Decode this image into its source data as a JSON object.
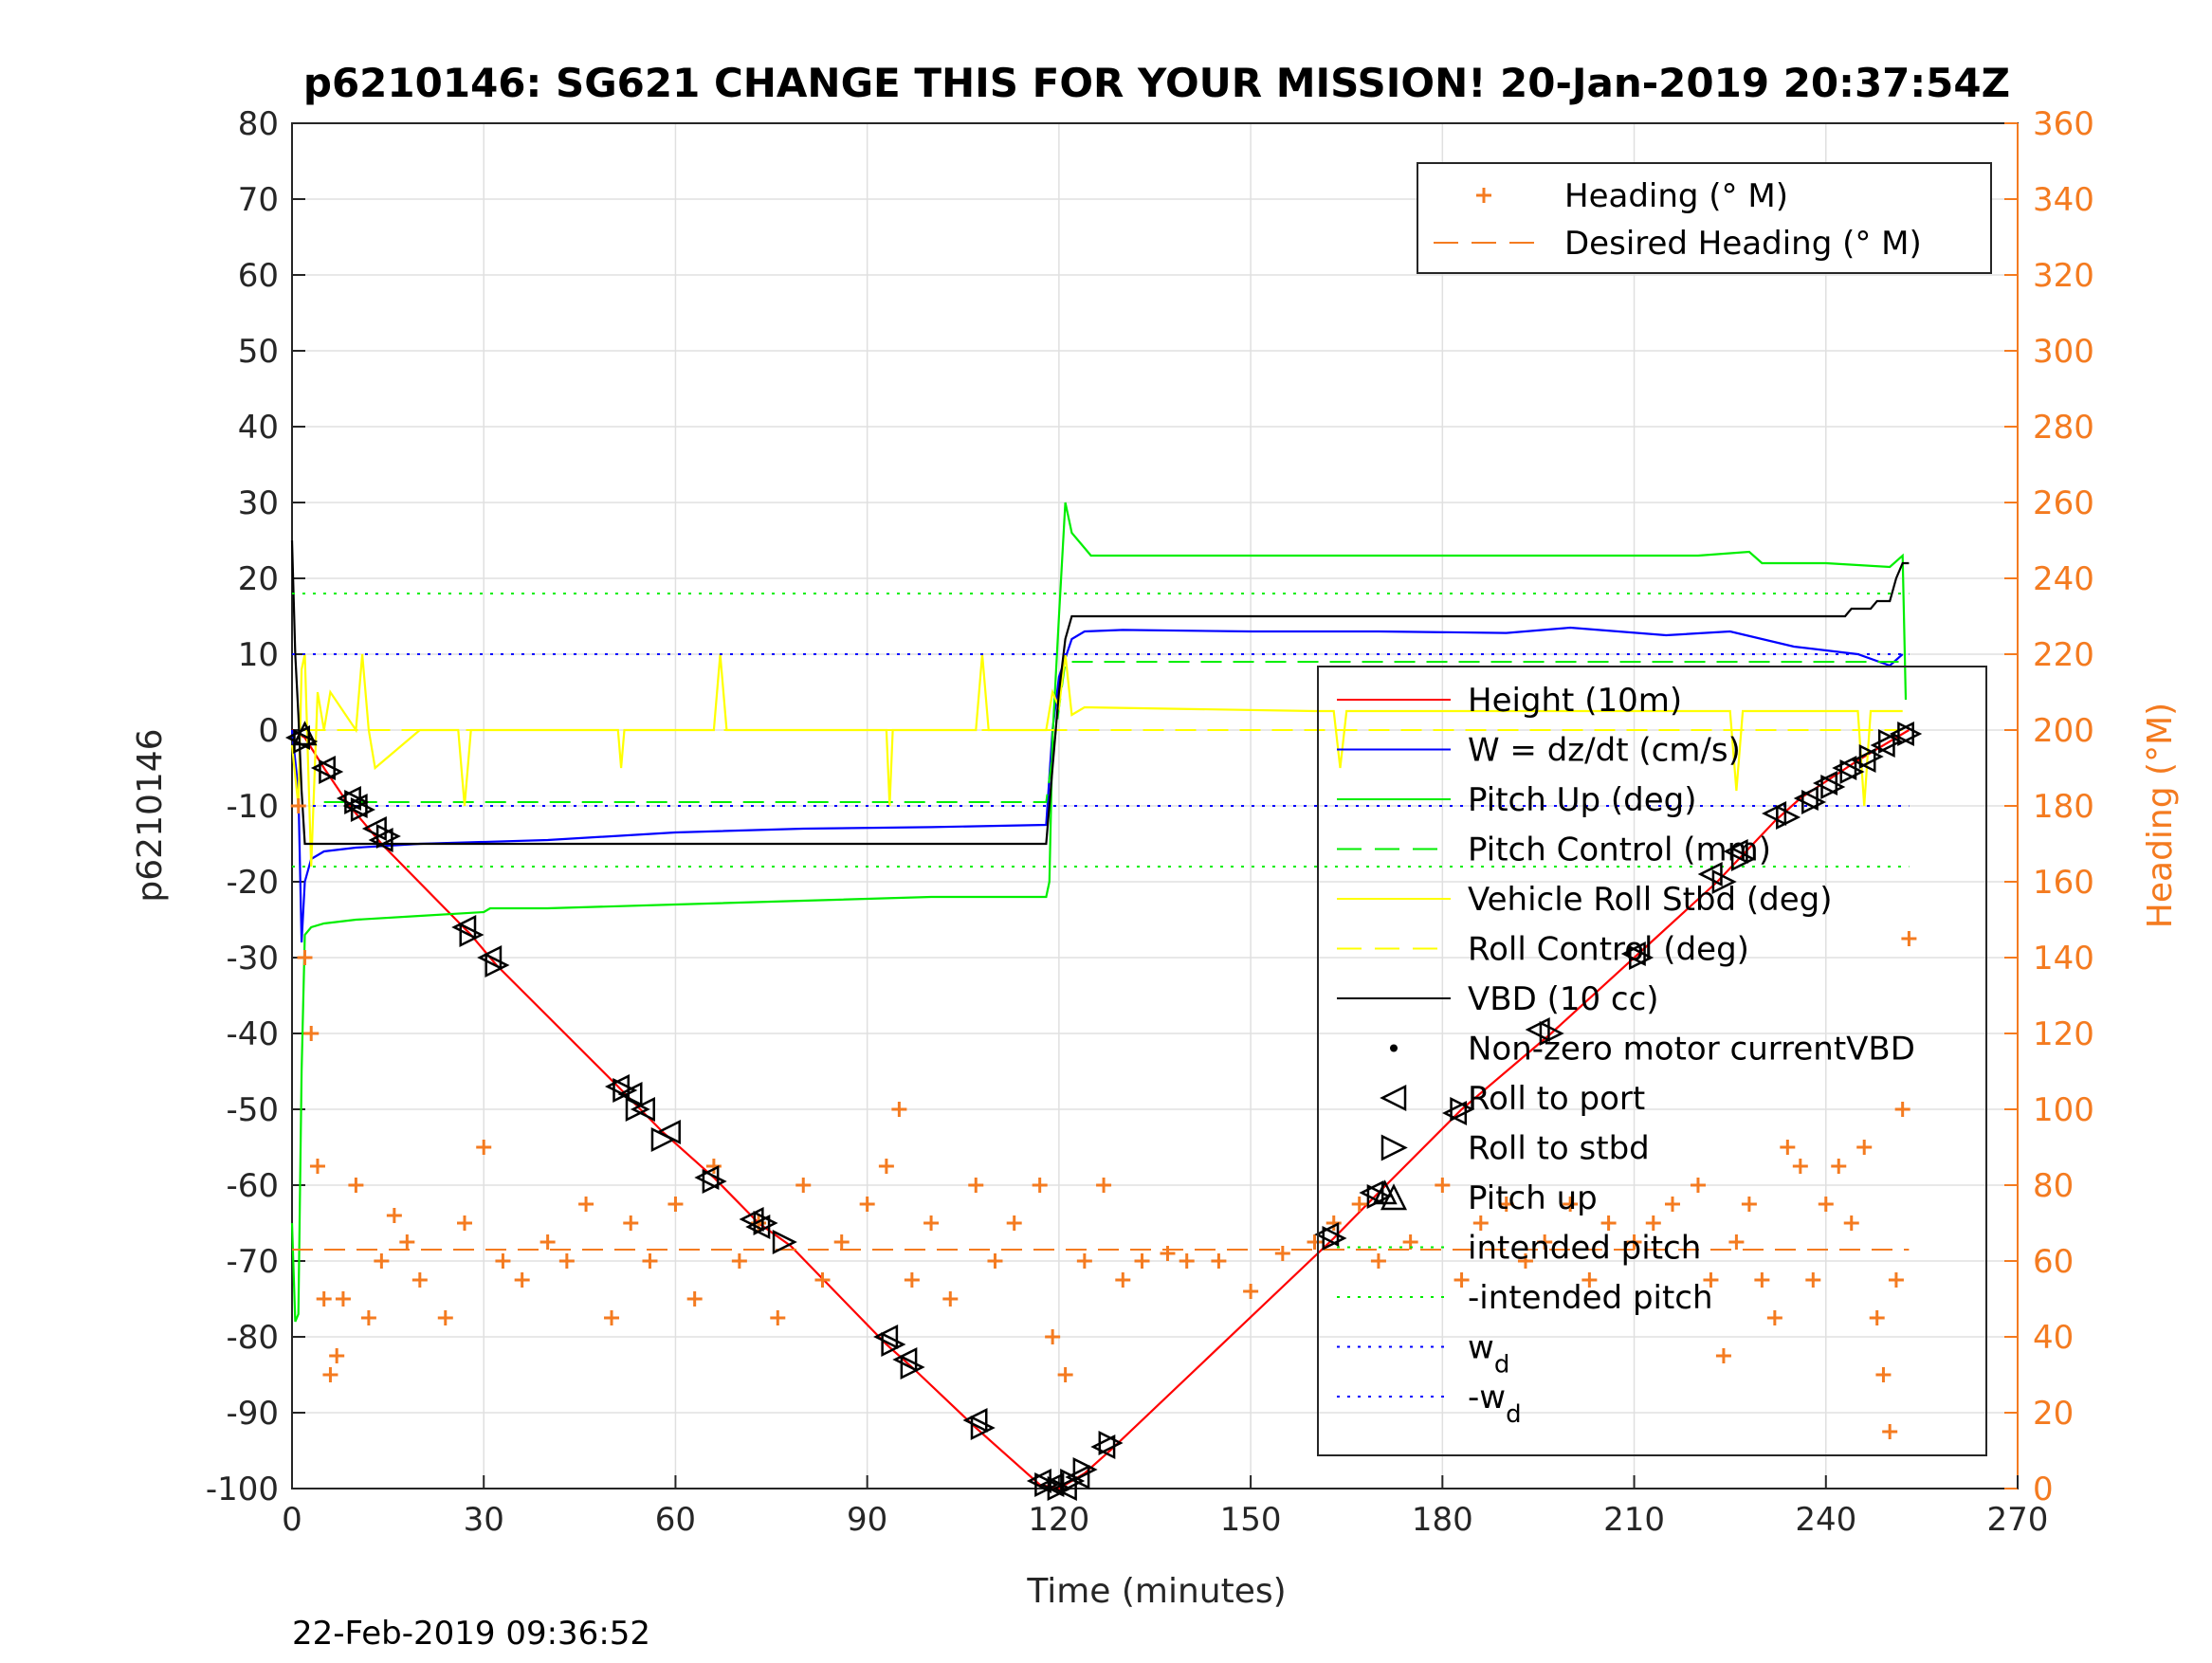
{
  "chart_data": {
    "type": "line",
    "title": "p6210146: SG621 CHANGE THIS FOR YOUR MISSION! 20-Jan-2019 20:37:54Z",
    "xlabel": "Time (minutes)",
    "ylabel": "p6210146",
    "y2label": "Heading (°M)",
    "xlim": [
      0,
      270
    ],
    "ylim": [
      -100,
      80
    ],
    "y2lim": [
      0,
      360
    ],
    "xticks": [
      0,
      30,
      60,
      90,
      120,
      150,
      180,
      210,
      240,
      270
    ],
    "yticks": [
      -100,
      -90,
      -80,
      -70,
      -60,
      -50,
      -40,
      -30,
      -20,
      -10,
      0,
      10,
      20,
      30,
      40,
      50,
      60,
      70,
      80
    ],
    "y2ticks": [
      0,
      20,
      40,
      60,
      80,
      100,
      120,
      140,
      160,
      180,
      200,
      220,
      240,
      260,
      280,
      300,
      320,
      340,
      360
    ],
    "grid": true,
    "footer": "22-Feb-2019 09:36:52",
    "colors": {
      "height": "#ff0000",
      "w": "#0000ff",
      "pitch": "#00ee00",
      "roll": "#ffff00",
      "vbd": "#000000",
      "heading": "#f47b20",
      "grid": "#e0e0e0"
    },
    "legend_heading": {
      "position": "top-right",
      "entries": [
        "Heading (° M)",
        "Desired Heading (° M)"
      ]
    },
    "legend_main": {
      "position": "right",
      "entries": [
        {
          "label": "Height (10m)",
          "symbol": "line",
          "color": "#ff0000"
        },
        {
          "label": "W = dz/dt (cm/s)",
          "symbol": "line",
          "color": "#0000ff"
        },
        {
          "label": "Pitch Up (deg)",
          "symbol": "line",
          "color": "#00ee00"
        },
        {
          "label": "Pitch Control (mm)",
          "symbol": "dashed",
          "color": "#00ee00"
        },
        {
          "label": "Vehicle Roll Stbd (deg)",
          "symbol": "line",
          "color": "#ffff00"
        },
        {
          "label": "Roll Control (deg)",
          "symbol": "dashed",
          "color": "#ffff00"
        },
        {
          "label": "VBD (10 cc)",
          "symbol": "line",
          "color": "#000000"
        },
        {
          "label": "Non-zero motor currentVBD",
          "symbol": "dot",
          "color": "#000000"
        },
        {
          "label": "Roll to port",
          "symbol": "tri-left",
          "color": "#000000"
        },
        {
          "label": "Roll to stbd",
          "symbol": "tri-right",
          "color": "#000000"
        },
        {
          "label": "Pitch up",
          "symbol": "tri-up",
          "color": "#000000"
        },
        {
          "label": "intended pitch",
          "symbol": "dotted",
          "color": "#00ee00"
        },
        {
          "label": "-intended pitch",
          "symbol": "dotted",
          "color": "#00ee00"
        },
        {
          "label": "w",
          "sub": "d",
          "symbol": "dotted",
          "color": "#0000ff"
        },
        {
          "label": "-w",
          "sub": "d",
          "symbol": "dotted",
          "color": "#0000ff"
        }
      ]
    },
    "series": [
      {
        "name": "Height (10m)",
        "axis": "left",
        "style": "line",
        "color": "#ff0000",
        "x": [
          0,
          2,
          5,
          9,
          14,
          28,
          32,
          51,
          58,
          66,
          73,
          78,
          93,
          97,
          107,
          117,
          120,
          124,
          128,
          163,
          170,
          183,
          197,
          210,
          223,
          232,
          236,
          245,
          253
        ],
        "y": [
          0,
          -1,
          -5,
          -10,
          -15,
          -27,
          -31,
          -47,
          -53,
          -59,
          -65,
          -68,
          -81,
          -84,
          -92,
          -99.5,
          -100,
          -98,
          -95,
          -67,
          -61,
          -50,
          -40,
          -30,
          -20,
          -12,
          -9,
          -4,
          0
        ]
      },
      {
        "name": "W = dz/dt (cm/s)",
        "axis": "left",
        "style": "line",
        "color": "#0000ff",
        "x": [
          0,
          1,
          1.5,
          2,
          3,
          5,
          10,
          20,
          40,
          60,
          80,
          100,
          118,
          119,
          120,
          122,
          124,
          130,
          150,
          170,
          190,
          200,
          215,
          225,
          235,
          245,
          250,
          252
        ],
        "y": [
          0,
          -8,
          -28,
          -20,
          -17,
          -16,
          -15.5,
          -15,
          -14.5,
          -13.5,
          -13,
          -12.8,
          -12.5,
          0,
          7,
          12,
          13,
          13.2,
          13,
          13,
          12.8,
          13.5,
          12.5,
          13,
          11,
          10,
          8.5,
          10
        ]
      },
      {
        "name": "Pitch Up (deg)",
        "axis": "left",
        "style": "line",
        "color": "#00ee00",
        "x": [
          0,
          0.5,
          1,
          1.5,
          2,
          3,
          5,
          10,
          20,
          30,
          31,
          40,
          60,
          80,
          100,
          118,
          118.5,
          119,
          120,
          121,
          122,
          124,
          125,
          140,
          160,
          180,
          200,
          220,
          228,
          230,
          240,
          250,
          252,
          252.5
        ],
        "y": [
          -65,
          -78,
          -77,
          -45,
          -27,
          -26,
          -25.5,
          -25,
          -24.5,
          -24,
          -23.5,
          -23.5,
          -23,
          -22.5,
          -22,
          -22,
          -20,
          -1,
          15,
          30,
          26,
          24,
          23,
          23,
          23,
          23,
          23,
          23,
          23.5,
          22,
          22,
          21.5,
          23,
          4
        ]
      },
      {
        "name": "Pitch Control (mm)",
        "axis": "left",
        "style": "dashed",
        "color": "#00ee00",
        "x": [
          5,
          118,
          121,
          252
        ],
        "y": [
          -9.5,
          -9.5,
          9,
          9
        ]
      },
      {
        "name": "Vehicle Roll Stbd (deg)",
        "axis": "left",
        "style": "line",
        "color": "#ffff00",
        "x": [
          0,
          1,
          1.5,
          2,
          3,
          4,
          5,
          6,
          10,
          11,
          12,
          13,
          20,
          26,
          27,
          28,
          40,
          51,
          51.5,
          52,
          60,
          66,
          67,
          68,
          80,
          93,
          93.5,
          94,
          100,
          107,
          108,
          109,
          118,
          119,
          120,
          121,
          122,
          124,
          160,
          163,
          164,
          165,
          180,
          200,
          220,
          225,
          226,
          227,
          240,
          245,
          246,
          247,
          252
        ],
        "y": [
          -2,
          -10,
          8,
          10,
          -18,
          5,
          0,
          5,
          0,
          10,
          0,
          -5,
          0,
          0,
          -10,
          0,
          0,
          0,
          -5,
          0,
          0,
          0,
          10,
          0,
          0,
          0,
          -10,
          0,
          0,
          0,
          10,
          0,
          0,
          5,
          3,
          10,
          2,
          3,
          2.5,
          2.5,
          -5,
          2.5,
          2.5,
          2.5,
          2.5,
          2.5,
          -8,
          2.5,
          2.5,
          2.5,
          -10,
          2.5,
          2.5
        ]
      },
      {
        "name": "Roll Control (deg)",
        "axis": "left",
        "style": "dashed",
        "color": "#ffff00",
        "x": [
          2,
          118,
          121,
          252
        ],
        "y": [
          0,
          0,
          0,
          0
        ]
      },
      {
        "name": "VBD (10 cc)",
        "axis": "left",
        "style": "line",
        "color": "#000000",
        "x": [
          0,
          0.5,
          1,
          1.5,
          2,
          118,
          119,
          120,
          121,
          122,
          125,
          150,
          200,
          225,
          243,
          244,
          247,
          248,
          250,
          251,
          252,
          253
        ],
        "y": [
          25,
          10,
          2,
          -8,
          -15,
          -15,
          -5,
          5,
          12,
          15,
          15,
          15,
          15,
          15,
          15,
          16,
          16,
          17,
          17,
          20,
          22,
          22
        ]
      },
      {
        "name": "intended pitch",
        "axis": "left",
        "style": "dotted",
        "color": "#00ee00",
        "x": [
          0,
          253
        ],
        "y": [
          18,
          18
        ]
      },
      {
        "name": "-intended pitch",
        "axis": "left",
        "style": "dotted",
        "color": "#00ee00",
        "x": [
          0,
          253
        ],
        "y": [
          -18,
          -18
        ]
      },
      {
        "name": "w",
        "axis": "left",
        "style": "dotted",
        "color": "#0000ff",
        "x": [
          0,
          253
        ],
        "y": [
          10,
          10
        ]
      },
      {
        "name": "-w",
        "axis": "left",
        "style": "dotted",
        "color": "#0000ff",
        "x": [
          0,
          253
        ],
        "y": [
          -10,
          -10
        ]
      },
      {
        "name": "Desired Heading (° M)",
        "axis": "right",
        "style": "dashed",
        "color": "#f47b20",
        "x": [
          0,
          253
        ],
        "y": [
          63,
          63
        ]
      },
      {
        "name": "Heading (° M)",
        "axis": "right",
        "style": "plus",
        "color": "#f47b20",
        "x": [
          1,
          2,
          3,
          4,
          5,
          6,
          7,
          8,
          10,
          12,
          14,
          16,
          18,
          20,
          24,
          27,
          30,
          33,
          36,
          40,
          43,
          46,
          50,
          53,
          56,
          60,
          63,
          66,
          70,
          73,
          76,
          80,
          83,
          86,
          90,
          93,
          95,
          97,
          100,
          103,
          107,
          110,
          113,
          117,
          119,
          121,
          124,
          127,
          130,
          133,
          137,
          140,
          145,
          150,
          155,
          160,
          163,
          167,
          170,
          175,
          180,
          183,
          186,
          190,
          193,
          196,
          200,
          203,
          206,
          210,
          213,
          216,
          220,
          222,
          224,
          226,
          228,
          230,
          232,
          234,
          236,
          238,
          240,
          242,
          244,
          246,
          248,
          249,
          250,
          251,
          252,
          253
        ],
        "y": [
          180,
          140,
          120,
          85,
          50,
          30,
          35,
          50,
          80,
          45,
          60,
          72,
          65,
          55,
          45,
          70,
          90,
          60,
          55,
          65,
          60,
          75,
          45,
          70,
          60,
          75,
          50,
          85,
          60,
          70,
          45,
          80,
          55,
          65,
          75,
          85,
          100,
          55,
          70,
          50,
          80,
          60,
          70,
          80,
          40,
          30,
          60,
          80,
          55,
          60,
          62,
          60,
          60,
          52,
          62,
          65,
          70,
          75,
          60,
          65,
          80,
          55,
          70,
          75,
          60,
          65,
          75,
          55,
          70,
          65,
          70,
          75,
          80,
          55,
          35,
          65,
          75,
          55,
          45,
          90,
          85,
          55,
          75,
          85,
          70,
          90,
          45,
          30,
          15,
          55,
          100,
          145
        ]
      },
      {
        "name": "Roll to port",
        "axis": "left",
        "style": "tri-left",
        "color": "#000000",
        "x": [
          1,
          5,
          9,
          10,
          13,
          14,
          27,
          31,
          51,
          53,
          55,
          59,
          65,
          72,
          73,
          93,
          96,
          107,
          117,
          119,
          121,
          123,
          127,
          162,
          169,
          182,
          195,
          210,
          222,
          226,
          232,
          237,
          240,
          243,
          246,
          249,
          252
        ],
        "y": [
          -1,
          -5,
          -9,
          -10,
          -13,
          -14.5,
          -26,
          -30,
          -47,
          -48,
          -50,
          -53,
          -59,
          -64.5,
          -65.5,
          -80,
          -83,
          -91,
          -99,
          -99.5,
          -100,
          -98.5,
          -94.5,
          -66.5,
          -61,
          -50.5,
          -39.5,
          -29.5,
          -19,
          -16,
          -11,
          -9,
          -7,
          -5,
          -4,
          -2,
          -0.5
        ]
      },
      {
        "name": "Roll to stbd",
        "axis": "left",
        "style": "tri-right",
        "color": "#000000",
        "x": [
          2,
          6,
          10,
          11,
          15,
          28,
          32,
          52,
          54,
          58,
          66,
          74,
          77,
          94,
          97,
          108,
          118,
          120,
          122,
          124,
          128,
          163,
          170,
          183,
          197,
          211,
          224,
          227,
          234,
          238,
          241,
          244,
          247,
          250,
          253
        ],
        "y": [
          -1.5,
          -5.5,
          -9.5,
          -10.5,
          -14,
          -27,
          -31,
          -47.5,
          -50,
          -54,
          -59.5,
          -65,
          -67.5,
          -81,
          -84,
          -92,
          -99.5,
          -100,
          -99,
          -97.5,
          -94,
          -67,
          -61.5,
          -50,
          -40,
          -30,
          -20,
          -17,
          -11.5,
          -9.5,
          -7.5,
          -5.5,
          -3.5,
          -1.5,
          -0.5
        ]
      },
      {
        "name": "Pitch up",
        "axis": "left",
        "style": "tri-up",
        "color": "#000000",
        "x": [
          2,
          171
        ],
        "y": [
          -0.5,
          -61
        ]
      }
    ]
  }
}
